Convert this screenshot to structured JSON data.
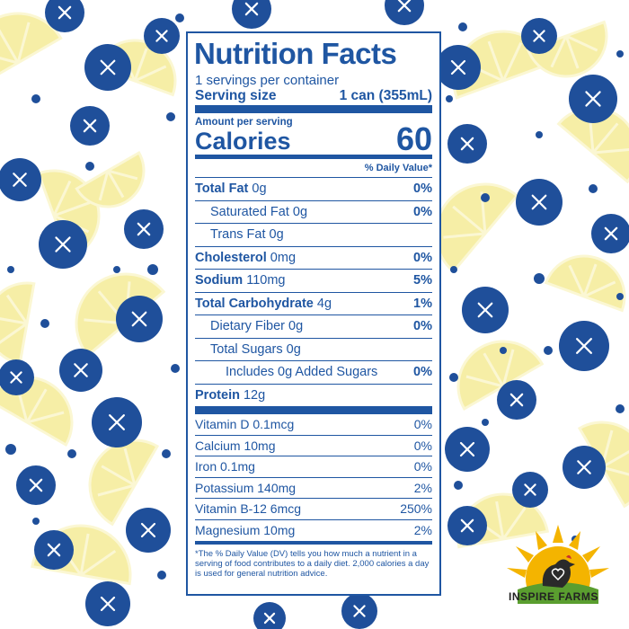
{
  "label": {
    "title": "Nutrition Facts",
    "servings": "1 servings per container",
    "serving_size_label": "Serving size",
    "serving_size_value": "1 can (355mL)",
    "amount_per_serving": "Amount per serving",
    "calories_label": "Calories",
    "calories_value": "60",
    "dv_header": "% Daily Value*",
    "nutrients": [
      {
        "name": "Total Fat",
        "amount": "0g",
        "dv": "0%"
      },
      {
        "name": "Saturated Fat",
        "amount": "0g",
        "dv": "0%"
      },
      {
        "name": "Trans Fat",
        "amount": "0g",
        "dv": ""
      },
      {
        "name": "Cholesterol",
        "amount": "0mg",
        "dv": "0%"
      },
      {
        "name": "Sodium",
        "amount": "110mg",
        "dv": "5%"
      },
      {
        "name": "Total Carbohydrate",
        "amount": "4g",
        "dv": "1%"
      },
      {
        "name": "Dietary Fiber",
        "amount": "0g",
        "dv": "0%"
      },
      {
        "name": "Total Sugars",
        "amount": "0g",
        "dv": ""
      },
      {
        "name": "Includes 0g Added Sugars",
        "amount": "",
        "dv": "0%"
      },
      {
        "name": "Protein",
        "amount": "12g",
        "dv": ""
      }
    ],
    "vitamins": [
      {
        "name": "Vitamin D 0.1mcg",
        "dv": "0%"
      },
      {
        "name": "Calcium 10mg",
        "dv": "0%"
      },
      {
        "name": "Iron 0.1mg",
        "dv": "0%"
      },
      {
        "name": "Potassium 140mg",
        "dv": "2%"
      },
      {
        "name": "Vitamin B-12 6mcg",
        "dv": "250%"
      },
      {
        "name": "Magnesium 10mg",
        "dv": "2%"
      }
    ],
    "footnote": "*The % Daily Value (DV) tells you how much a nutrient in a serving of food contributes to a daily diet. 2,000 calories a day is used for general nutrition advice."
  },
  "brand": {
    "name": "INSPIRE FARMS",
    "icon": "sun-hen-logo"
  },
  "colors": {
    "label_blue": "#1f56a2",
    "blueberry": "#1f4f9a",
    "lemon": "#f6eea6",
    "lemon_pith": "#fbf7d3"
  }
}
